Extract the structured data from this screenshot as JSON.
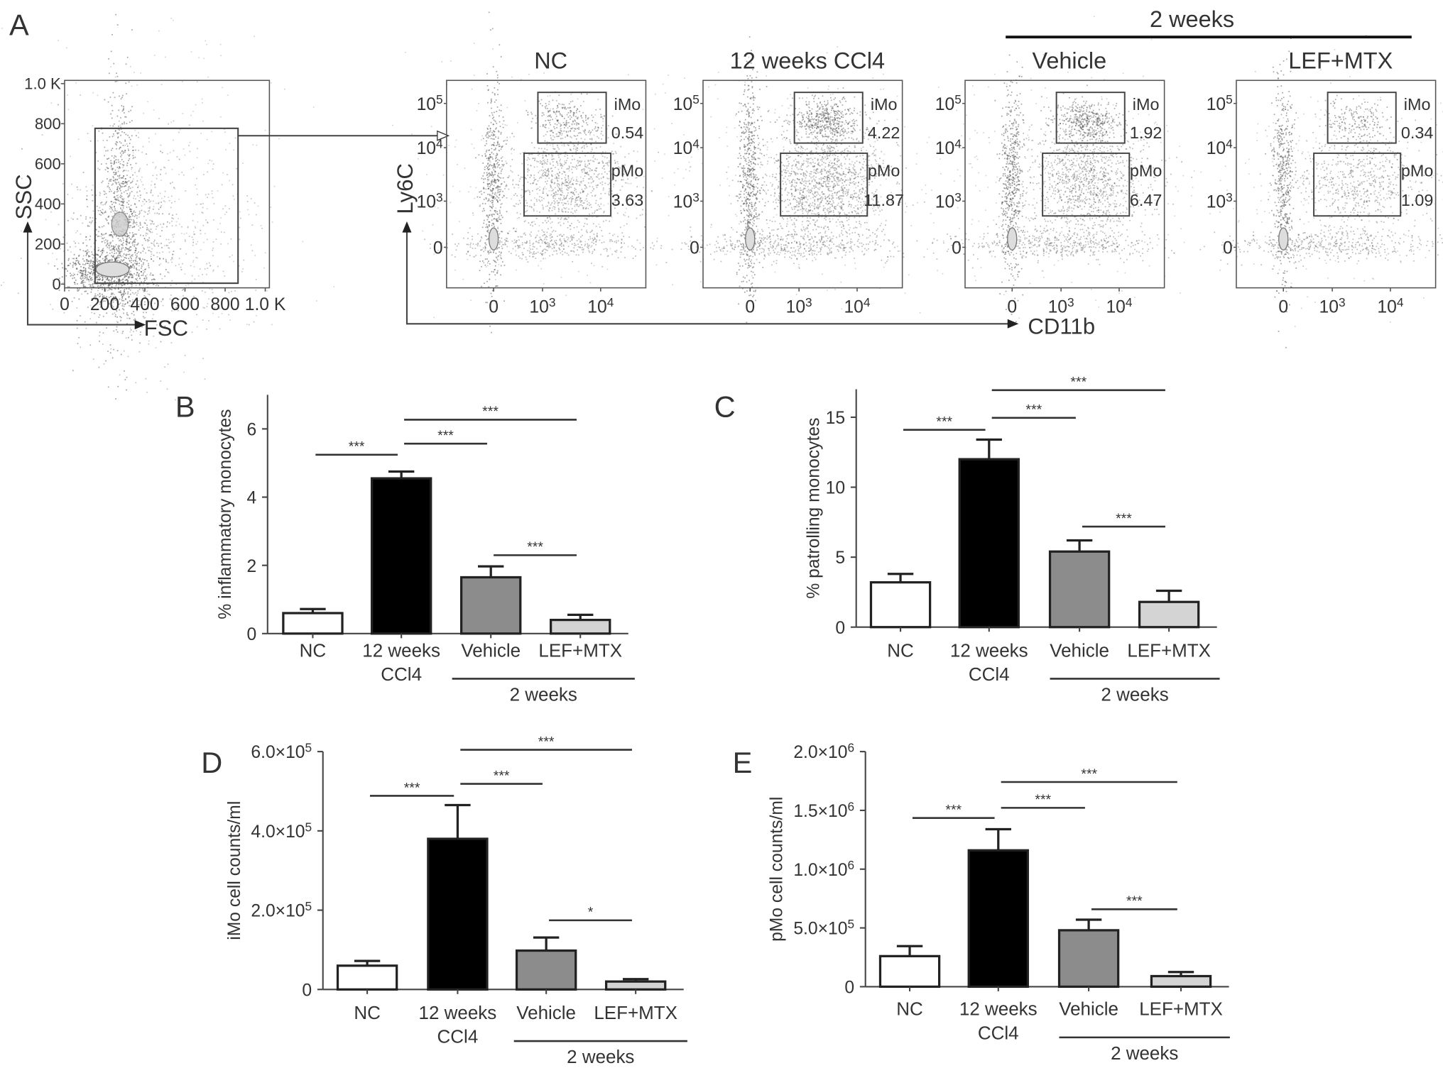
{
  "figure": {
    "panel_labels": [
      "A",
      "B",
      "C",
      "D",
      "E"
    ],
    "flow": {
      "gating_plot": {
        "x_label": "FSC",
        "y_label": "SSC",
        "x_ticks": [
          "0",
          "200",
          "400",
          "600",
          "800",
          "1.0 K"
        ],
        "y_ticks": [
          "0",
          "200",
          "400",
          "600",
          "800",
          "1.0 K"
        ]
      },
      "group_header": "2 weeks",
      "x_axis_label": "CD11b",
      "y_axis_label": "Ly6C",
      "y_ticks": [
        "0",
        "10^3",
        "10^4",
        "10^5"
      ],
      "x_ticks": [
        "0",
        "10^3",
        "10^4"
      ],
      "gate_labels": {
        "imo": "iMo",
        "pmo": "pMo"
      },
      "panels": [
        {
          "title": "NC",
          "imo": "0.54",
          "pmo": "3.63"
        },
        {
          "title": "12 weeks CCl4",
          "imo": "4.22",
          "pmo": "11.87"
        },
        {
          "title": "Vehicle",
          "imo": "1.92",
          "pmo": "6.47"
        },
        {
          "title": "LEF+MTX",
          "imo": "0.34",
          "pmo": "1.09"
        }
      ]
    }
  },
  "chart_data": [
    {
      "panel": "B",
      "type": "bar",
      "ylabel": "% inflammatory monocytes",
      "categories": [
        "NC",
        "12 weeks|CCl4",
        "Vehicle",
        "LEF+MTX"
      ],
      "group_label": "2 weeks",
      "values": [
        0.6,
        4.55,
        1.65,
        0.4
      ],
      "errors": [
        0.12,
        0.2,
        0.32,
        0.15
      ],
      "ylim": [
        0,
        7
      ],
      "yticks": [
        0,
        2,
        4,
        6
      ],
      "ytick_labels": [
        "0",
        "2",
        "4",
        "6"
      ],
      "significance": [
        {
          "from": 0,
          "to": 1,
          "label": "***"
        },
        {
          "from": 1,
          "to": 2,
          "label": "***"
        },
        {
          "from": 1,
          "to": 3,
          "label": "***"
        },
        {
          "from": 2,
          "to": 3,
          "label": "***"
        }
      ]
    },
    {
      "panel": "C",
      "type": "bar",
      "ylabel": "% patrolling monocytes",
      "categories": [
        "NC",
        "12 weeks|CCl4",
        "Vehicle",
        "LEF+MTX"
      ],
      "group_label": "2 weeks",
      "values": [
        3.2,
        12.0,
        5.4,
        1.8
      ],
      "errors": [
        0.6,
        1.4,
        0.8,
        0.8
      ],
      "ylim": [
        0,
        17
      ],
      "yticks": [
        0,
        5,
        10,
        15
      ],
      "ytick_labels": [
        "0",
        "5",
        "10",
        "15"
      ],
      "significance": [
        {
          "from": 0,
          "to": 1,
          "label": "***"
        },
        {
          "from": 1,
          "to": 2,
          "label": "***"
        },
        {
          "from": 1,
          "to": 3,
          "label": "***"
        },
        {
          "from": 2,
          "to": 3,
          "label": "***"
        }
      ]
    },
    {
      "panel": "D",
      "type": "bar",
      "ylabel": "iMo cell counts/ml",
      "categories": [
        "NC",
        "12 weeks|CCl4",
        "Vehicle",
        "LEF+MTX"
      ],
      "group_label": "2 weeks",
      "values": [
        60000,
        380000,
        98000,
        20000
      ],
      "errors": [
        12000,
        85000,
        33000,
        6000
      ],
      "ylim": [
        0,
        600000
      ],
      "yticks": [
        0,
        200000,
        400000,
        600000
      ],
      "ytick_labels": [
        "0",
        "2.0×10^5",
        "4.0×10^5",
        "6.0×10^5"
      ],
      "significance": [
        {
          "from": 0,
          "to": 1,
          "label": "***"
        },
        {
          "from": 1,
          "to": 2,
          "label": "***"
        },
        {
          "from": 1,
          "to": 3,
          "label": "***"
        },
        {
          "from": 2,
          "to": 3,
          "label": "*"
        }
      ]
    },
    {
      "panel": "E",
      "type": "bar",
      "ylabel": "pMo cell counts/ml",
      "categories": [
        "NC",
        "12 weeks|CCl4",
        "Vehicle",
        "LEF+MTX"
      ],
      "group_label": "2 weeks",
      "values": [
        260000,
        1160000,
        480000,
        90000
      ],
      "errors": [
        85000,
        180000,
        90000,
        35000
      ],
      "ylim": [
        0,
        2000000
      ],
      "yticks": [
        0,
        500000,
        1000000,
        1500000,
        2000000
      ],
      "ytick_labels": [
        "0",
        "5.0×10^5",
        "1.0×10^6",
        "1.5×10^6",
        "2.0×10^6"
      ],
      "significance": [
        {
          "from": 0,
          "to": 1,
          "label": "***"
        },
        {
          "from": 1,
          "to": 2,
          "label": "***"
        },
        {
          "from": 1,
          "to": 3,
          "label": "***"
        },
        {
          "from": 2,
          "to": 3,
          "label": "***"
        }
      ]
    }
  ],
  "colors": {
    "bars": [
      "#ffffff",
      "#000000",
      "#8c8c8c",
      "#d4d4d4"
    ],
    "text": "#333333",
    "dots": "#555555"
  }
}
